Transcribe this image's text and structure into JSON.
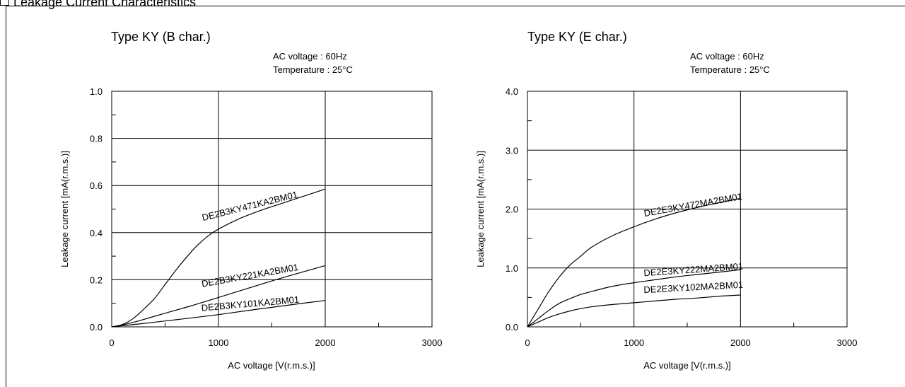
{
  "page": {
    "title": "Leakage Current Characteristics"
  },
  "chart_data": [
    {
      "type": "line",
      "title": "Type KY (B char.)",
      "conditions": {
        "line1": "AC voltage   : 60Hz",
        "line2": "Temperature : 25°C"
      },
      "xlabel": "AC voltage [V(r.m.s.)]",
      "ylabel": "Leakage current [mA(r.m.s.)]",
      "xlim": [
        0,
        3000
      ],
      "ylim": [
        0,
        1.0
      ],
      "x_ticks": [
        0,
        1000,
        2000,
        3000
      ],
      "x_tick_labels": [
        "0",
        "1000",
        "2000",
        "3000"
      ],
      "y_ticks": [
        0,
        0.2,
        0.4,
        0.6,
        0.8,
        1.0
      ],
      "y_tick_labels": [
        "0.0",
        "0.2",
        "0.4",
        "0.6",
        "0.8",
        "1.0"
      ],
      "grid": true,
      "series": [
        {
          "name": "DE2B3KY471KA2BM01",
          "x": [
            0,
            100,
            200,
            300,
            400,
            500,
            600,
            700,
            800,
            900,
            1000,
            1200,
            1400,
            1600,
            1800,
            2000
          ],
          "y": [
            0,
            0.01,
            0.035,
            0.075,
            0.12,
            0.18,
            0.24,
            0.295,
            0.345,
            0.385,
            0.415,
            0.46,
            0.495,
            0.525,
            0.555,
            0.585
          ]
        },
        {
          "name": "DE2B3KY221KA2BM01",
          "x": [
            0,
            100,
            250,
            500,
            750,
            1000,
            1250,
            1500,
            1750,
            2000
          ],
          "y": [
            0,
            0.008,
            0.025,
            0.058,
            0.09,
            0.125,
            0.16,
            0.195,
            0.228,
            0.26
          ]
        },
        {
          "name": "DE2B3KY101KA2BM01",
          "x": [
            0,
            100,
            250,
            500,
            750,
            1000,
            1250,
            1500,
            1750,
            2000
          ],
          "y": [
            0,
            0.005,
            0.012,
            0.025,
            0.038,
            0.052,
            0.068,
            0.083,
            0.098,
            0.112
          ]
        }
      ]
    },
    {
      "type": "line",
      "title": "Type KY (E char.)",
      "conditions": {
        "line1": "AC voltage   : 60Hz",
        "line2": "Temperature : 25°C"
      },
      "xlabel": "AC voltage [V(r.m.s.)]",
      "ylabel": "Leakage current [mA(r.m.s.)]",
      "xlim": [
        0,
        3000
      ],
      "ylim": [
        0,
        4.0
      ],
      "x_ticks": [
        0,
        1000,
        2000,
        3000
      ],
      "x_tick_labels": [
        "0",
        "1000",
        "2000",
        "3000"
      ],
      "y_ticks": [
        0,
        1.0,
        2.0,
        3.0,
        4.0
      ],
      "y_tick_labels": [
        "0.0",
        "1.0",
        "2.0",
        "3.0",
        "4.0"
      ],
      "grid": true,
      "series": [
        {
          "name": "DE2E3KY472MA2BM01",
          "x": [
            0,
            100,
            200,
            300,
            400,
            500,
            600,
            800,
            1000,
            1200,
            1400,
            1600,
            1800,
            2000
          ],
          "y": [
            0,
            0.3,
            0.6,
            0.85,
            1.05,
            1.2,
            1.35,
            1.55,
            1.7,
            1.83,
            1.94,
            2.03,
            2.11,
            2.18
          ]
        },
        {
          "name": "DE2E3KY222MA2BM01",
          "x": [
            0,
            100,
            200,
            300,
            400,
            500,
            600,
            800,
            1000,
            1200,
            1400,
            1600,
            1800,
            2000
          ],
          "y": [
            0,
            0.14,
            0.28,
            0.4,
            0.48,
            0.55,
            0.6,
            0.69,
            0.75,
            0.8,
            0.85,
            0.89,
            0.93,
            0.97
          ]
        },
        {
          "name": "DE2E3KY102MA2BM01",
          "x": [
            0,
            100,
            200,
            300,
            400,
            500,
            600,
            800,
            1000,
            1200,
            1400,
            1600,
            1800,
            2000
          ],
          "y": [
            0,
            0.08,
            0.16,
            0.22,
            0.27,
            0.31,
            0.34,
            0.38,
            0.41,
            0.44,
            0.47,
            0.49,
            0.52,
            0.54
          ]
        }
      ]
    }
  ]
}
